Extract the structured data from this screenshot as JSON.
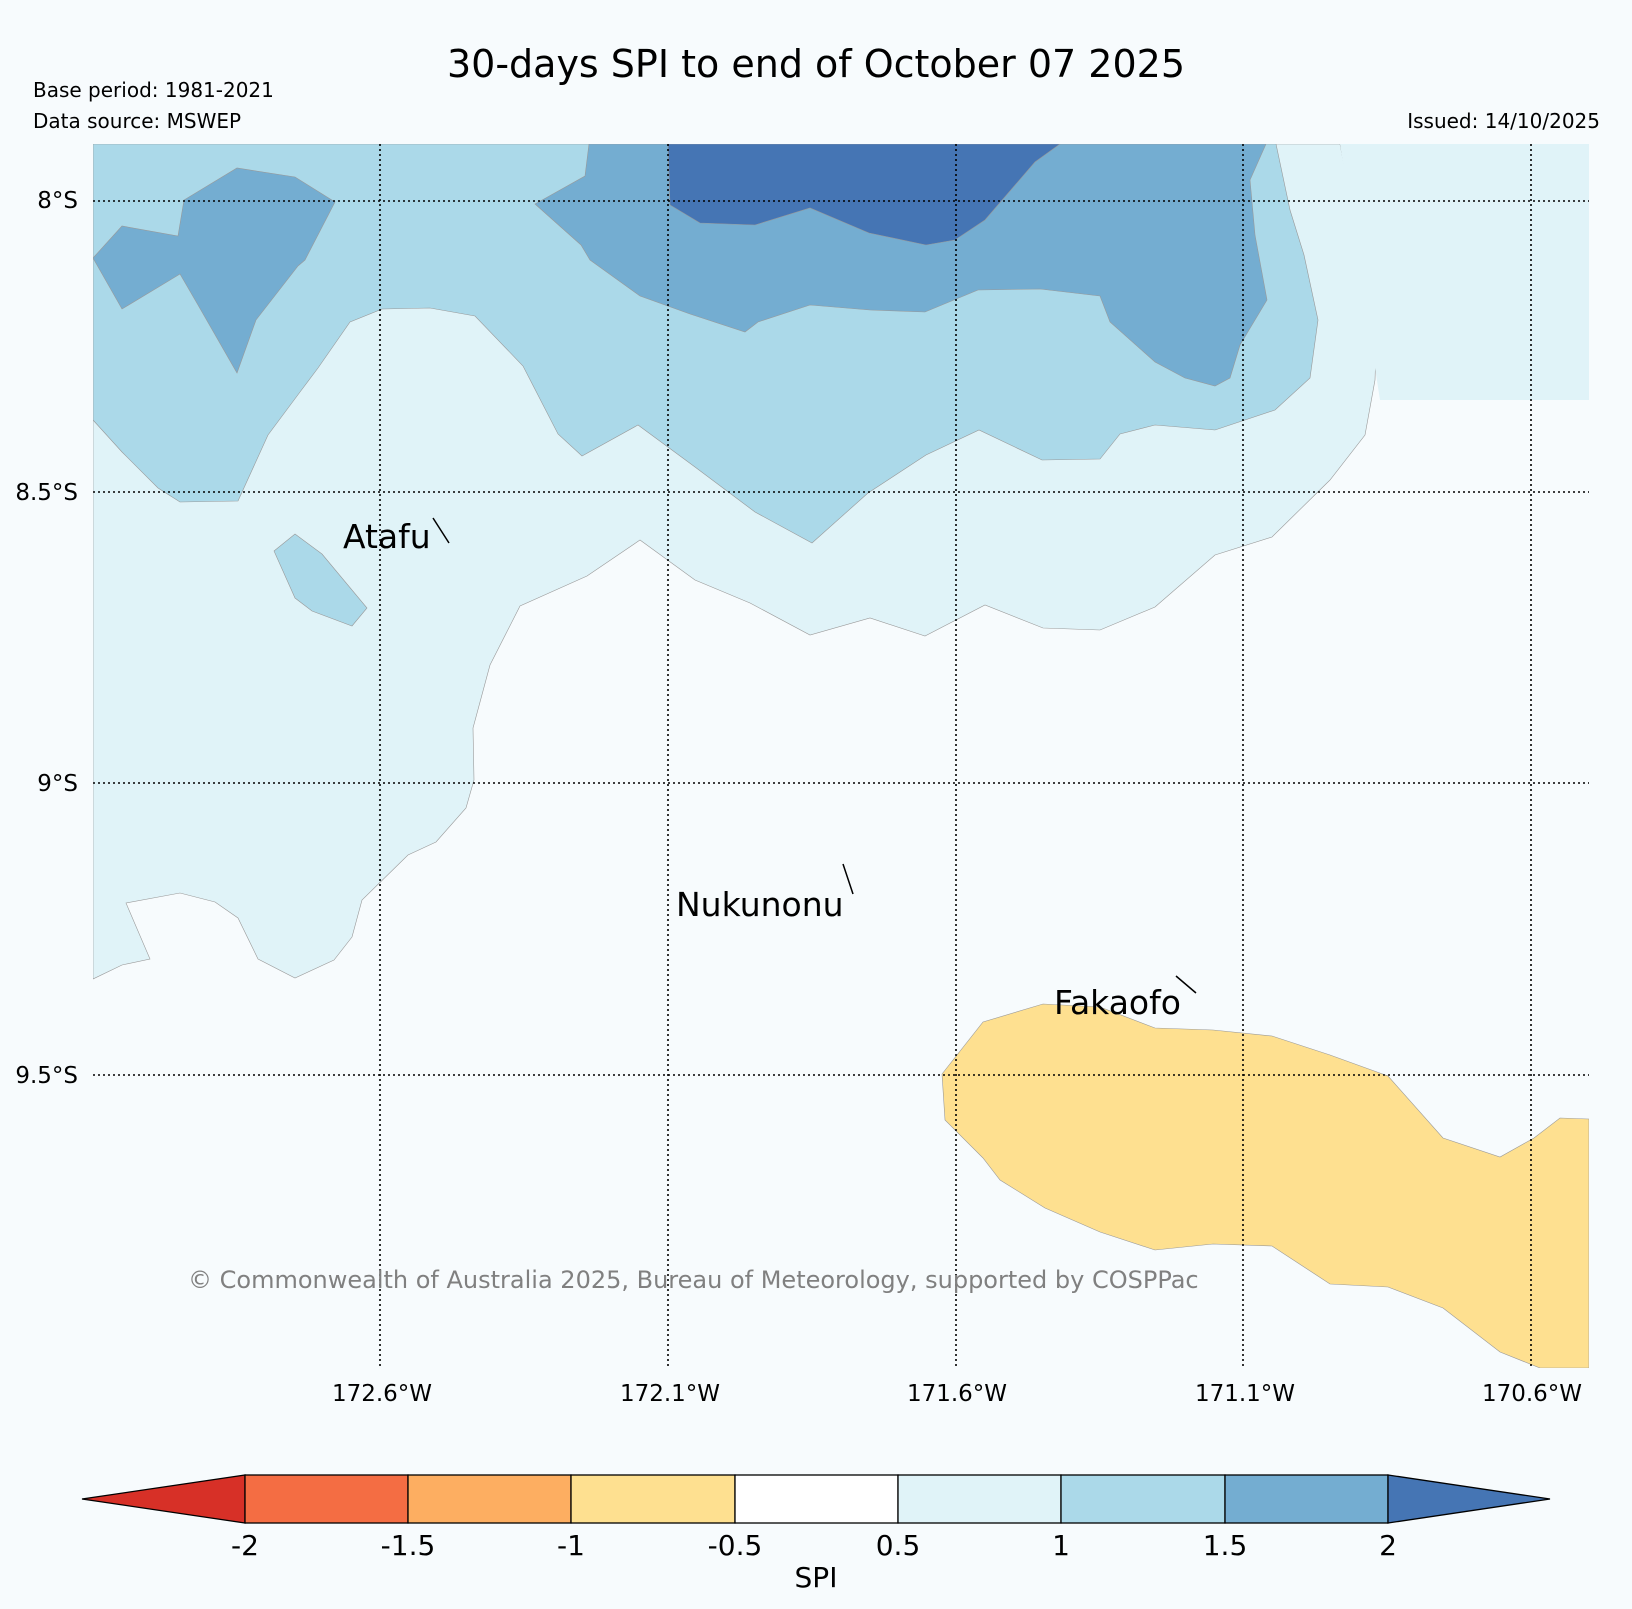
{
  "header": {
    "title": "30-days SPI to end of October 07 2025",
    "base_period": "Base period: 1981-2021",
    "data_source": "Data source: MSWEP",
    "issued": "Issued: 14/10/2025"
  },
  "map": {
    "lat_labels": [
      "8°S",
      "8.5°S",
      "9°S",
      "9.5°S"
    ],
    "lon_labels": [
      "172.6°W",
      "172.1°W",
      "171.6°W",
      "171.1°W",
      "170.6°W"
    ],
    "places": [
      "Atafu",
      "Nukunonu",
      "Fakaofo"
    ],
    "copyright": "© Commonwealth of Australia 2025, Bureau of Meteorology, supported by COSPPac",
    "fill_colors": {
      "spi_0_5_to_1": "#e0f3f8",
      "spi_1_to_1_5": "#abd9e9",
      "spi_1_5_to_2": "#74add1",
      "spi_above_2": "#4575b4",
      "spi_minus_1_to_minus_0_5": "#fee090",
      "background": "#f7fbfd"
    }
  },
  "colorbar": {
    "label": "SPI",
    "ticks": [
      "-2",
      "-1.5",
      "-1",
      "-0.5",
      "0.5",
      "1",
      "1.5",
      "2"
    ],
    "colors": [
      "#d73027",
      "#f46d43",
      "#fdae61",
      "#fee090",
      "#ffffff",
      "#e0f3f8",
      "#abd9e9",
      "#74add1",
      "#4575b4"
    ]
  }
}
